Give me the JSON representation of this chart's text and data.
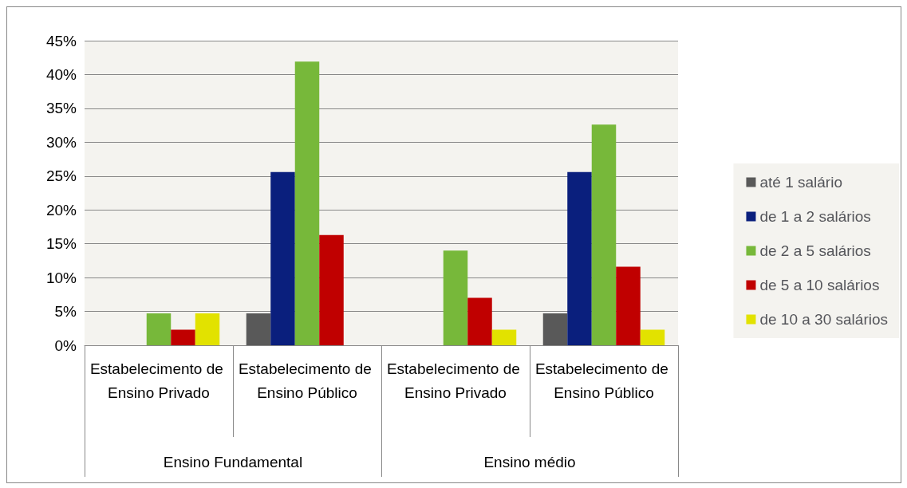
{
  "chart_data": {
    "type": "bar",
    "categories": [
      "Estabelecimento de Ensino Privado",
      "Estabelecimento de Ensino Público",
      "Estabelecimento de Ensino Privado",
      "Estabelecimento de Ensino Público"
    ],
    "annotations": [
      "Ensino Fundamental",
      "Ensino médio"
    ],
    "series": [
      {
        "name": "até 1 salário",
        "color": "#595959",
        "values": [
          null,
          4.7,
          null,
          4.7
        ]
      },
      {
        "name": "de 1 a 2 salários",
        "color": "#0a1f7d",
        "values": [
          null,
          25.6,
          null,
          25.6
        ]
      },
      {
        "name": "de 2 a 5 salários",
        "color": "#77b83a",
        "values": [
          4.7,
          41.9,
          14.0,
          32.6
        ]
      },
      {
        "name": "de 5 a 10 salários",
        "color": "#c00000",
        "values": [
          2.3,
          16.3,
          7.0,
          11.6
        ]
      },
      {
        "name": "de 10 a 30 salários",
        "color": "#e2e200",
        "values": [
          4.7,
          null,
          2.3,
          2.3
        ]
      }
    ],
    "ylim": [
      0,
      45
    ],
    "yticks": [
      {
        "value": 0,
        "label": "0%"
      },
      {
        "value": 5,
        "label": "5%"
      },
      {
        "value": 10,
        "label": "10%"
      },
      {
        "value": 15,
        "label": "15%"
      },
      {
        "value": 20,
        "label": "20%"
      },
      {
        "value": 25,
        "label": "25%"
      },
      {
        "value": 30,
        "label": "30%"
      },
      {
        "value": 35,
        "label": "35%"
      },
      {
        "value": 40,
        "label": "40%"
      },
      {
        "value": 45,
        "label": "45%"
      }
    ],
    "grid": "y",
    "legend": "right"
  }
}
